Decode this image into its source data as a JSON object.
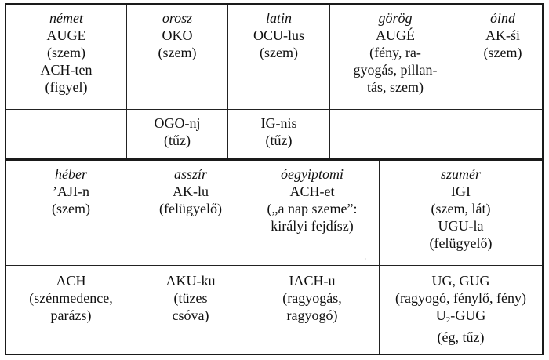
{
  "upper_table": {
    "header_row": [
      {
        "language": "német",
        "lines": [
          "AUGE",
          "(szem)",
          "ACH-ten",
          "(figyel)"
        ]
      },
      {
        "language": "orosz",
        "lines": [
          "OKO",
          "(szem)"
        ]
      },
      {
        "language": "latin",
        "lines": [
          "OCU-lus",
          "(szem)"
        ]
      },
      {
        "language": "görög",
        "lines": [
          "AUGÉ",
          "(fény, ra-",
          "gyogás, pillan-",
          "tás, szem)"
        ]
      },
      {
        "language": "óind",
        "lines": [
          "AK-śi",
          "(szem)"
        ]
      }
    ],
    "second_row": [
      {
        "lines": []
      },
      {
        "lines": [
          "OGO-nj",
          "(tűz)"
        ]
      },
      {
        "lines": [
          "IG-nis",
          "(tűz)"
        ]
      },
      {
        "lines": []
      }
    ]
  },
  "lower_table": {
    "header_row": [
      {
        "language": "héber",
        "lines": [
          "’AJI-n",
          "(szem)"
        ]
      },
      {
        "language": "asszír",
        "lines": [
          "AK-lu",
          "(felügyelő)"
        ]
      },
      {
        "language": "óegyiptomi",
        "lines": [
          "ACH-et",
          "(„a nap szeme”:",
          "királyi fejdísz)"
        ]
      },
      {
        "language": "szumér",
        "lines": [
          "IGI",
          "(szem, lát)",
          "UGU-la",
          "(felügyelő)"
        ]
      }
    ],
    "second_row": [
      {
        "lines": [
          "ACH",
          "(szénmedence,",
          "parázs)"
        ]
      },
      {
        "lines": [
          "AKU-ku",
          "(tüzes",
          "csóva)"
        ]
      },
      {
        "lines": [
          "IACH-u",
          "(ragyogás,",
          "ragyogó)"
        ]
      },
      {
        "lines": [
          "UG, GUG",
          "(ragyogó, fénylő, fény)"
        ],
        "formula": {
          "base": "U",
          "subscript": "2",
          "rest": "-GUG"
        },
        "after": [
          "(ég, tűz)"
        ]
      }
    ]
  }
}
